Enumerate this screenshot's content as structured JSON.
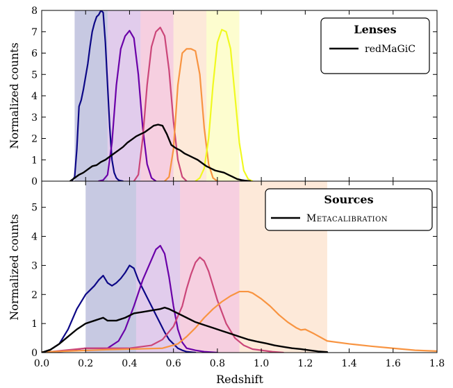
{
  "chart_data": [
    {
      "type": "line",
      "panel": "top",
      "ylabel": "Normalized counts",
      "xlabel": "",
      "xlim": [
        0.0,
        1.8
      ],
      "ylim": [
        0,
        8
      ],
      "yticks": [
        "0",
        "1",
        "2",
        "3",
        "4",
        "5",
        "6",
        "7",
        "8"
      ],
      "grid": false,
      "legend": {
        "placement": "top-right",
        "title": "Lenses",
        "entries": [
          {
            "label": "redMaGiC",
            "color": "#000000"
          }
        ]
      },
      "bins": [
        {
          "range": [
            0.15,
            0.3
          ],
          "color": "#8f94c6"
        },
        {
          "range": [
            0.3,
            0.45
          ],
          "color": "#c39ad9"
        },
        {
          "range": [
            0.45,
            0.6
          ],
          "color": "#ee9fc2"
        },
        {
          "range": [
            0.6,
            0.75
          ],
          "color": "#fcd4b4"
        },
        {
          "range": [
            0.75,
            0.9
          ],
          "color": "#fbfba0"
        }
      ],
      "series": [
        {
          "color": "#0c0786",
          "x": [
            0.13,
            0.14,
            0.15,
            0.16,
            0.17,
            0.18,
            0.19,
            0.2,
            0.21,
            0.22,
            0.23,
            0.24,
            0.25,
            0.26,
            0.27,
            0.28,
            0.29,
            0.3,
            0.31,
            0.32,
            0.33,
            0.34,
            0.35,
            0.36,
            0.37
          ],
          "y": [
            0,
            0.05,
            0.2,
            1.5,
            3.5,
            3.8,
            4.3,
            4.9,
            5.5,
            6.3,
            7.0,
            7.4,
            7.7,
            7.8,
            8.0,
            7.9,
            6.5,
            4.5,
            2.5,
            1.0,
            0.4,
            0.15,
            0.05,
            0.02,
            0
          ]
        },
        {
          "color": "#6a00a8",
          "x": [
            0.26,
            0.28,
            0.3,
            0.32,
            0.34,
            0.36,
            0.38,
            0.4,
            0.42,
            0.44,
            0.46,
            0.48,
            0.5,
            0.52
          ],
          "y": [
            0,
            0.05,
            0.3,
            1.8,
            4.5,
            6.2,
            6.8,
            7.05,
            6.7,
            5.0,
            2.5,
            0.8,
            0.15,
            0
          ]
        },
        {
          "color": "#cb4679",
          "x": [
            0.42,
            0.44,
            0.46,
            0.48,
            0.5,
            0.52,
            0.54,
            0.56,
            0.58,
            0.6,
            0.62,
            0.64,
            0.66
          ],
          "y": [
            0,
            0.3,
            2.0,
            4.5,
            6.3,
            7.0,
            7.2,
            6.8,
            5.2,
            2.8,
            1.0,
            0.2,
            0
          ]
        },
        {
          "color": "#f89441",
          "x": [
            0.56,
            0.58,
            0.6,
            0.62,
            0.64,
            0.66,
            0.68,
            0.7,
            0.72,
            0.74,
            0.76,
            0.78,
            0.8
          ],
          "y": [
            0,
            0.2,
            1.5,
            4.5,
            6.0,
            6.2,
            6.2,
            6.1,
            5.0,
            2.5,
            0.8,
            0.15,
            0
          ]
        },
        {
          "color": "#f0f921",
          "x": [
            0.7,
            0.72,
            0.74,
            0.76,
            0.78,
            0.8,
            0.82,
            0.84,
            0.86,
            0.88,
            0.9,
            0.92,
            0.94,
            0.96
          ],
          "y": [
            0,
            0.15,
            0.6,
            2.0,
            4.5,
            6.5,
            7.1,
            7.0,
            6.2,
            4.0,
            1.8,
            0.5,
            0.1,
            0
          ]
        },
        {
          "color": "#000000",
          "x": [
            0.13,
            0.15,
            0.17,
            0.19,
            0.21,
            0.23,
            0.25,
            0.27,
            0.29,
            0.31,
            0.33,
            0.35,
            0.37,
            0.39,
            0.41,
            0.43,
            0.45,
            0.47,
            0.49,
            0.51,
            0.53,
            0.55,
            0.57,
            0.59,
            0.61,
            0.63,
            0.65,
            0.67,
            0.69,
            0.71,
            0.73,
            0.75,
            0.77,
            0.79,
            0.81,
            0.83,
            0.85,
            0.87,
            0.89,
            0.91,
            0.93,
            0.95
          ],
          "y": [
            0,
            0.15,
            0.3,
            0.4,
            0.55,
            0.7,
            0.75,
            0.9,
            1.0,
            1.15,
            1.3,
            1.45,
            1.6,
            1.8,
            1.95,
            2.1,
            2.2,
            2.3,
            2.45,
            2.6,
            2.65,
            2.6,
            2.2,
            1.7,
            1.55,
            1.45,
            1.3,
            1.2,
            1.1,
            1.0,
            0.85,
            0.7,
            0.6,
            0.5,
            0.45,
            0.4,
            0.3,
            0.2,
            0.1,
            0.05,
            0.02,
            0
          ]
        }
      ]
    },
    {
      "type": "line",
      "panel": "bottom",
      "ylabel": "Normalized counts",
      "xlabel": "Redshift",
      "xlim": [
        0.0,
        1.8
      ],
      "ylim": [
        0,
        5.9
      ],
      "yticks": [
        "0",
        "1",
        "2",
        "3",
        "4",
        "5"
      ],
      "xticks": [
        "0.0",
        "0.2",
        "0.4",
        "0.6",
        "0.8",
        "1.0",
        "1.2",
        "1.4",
        "1.6",
        "1.8"
      ],
      "grid": false,
      "legend": {
        "placement": "top-right",
        "title": "Sources",
        "entries": [
          {
            "label": "Metacalibration",
            "color": "#000000"
          }
        ]
      },
      "bins": [
        {
          "range": [
            0.2,
            0.43
          ],
          "color": "#8f94c6"
        },
        {
          "range": [
            0.43,
            0.63
          ],
          "color": "#c39ad9"
        },
        {
          "range": [
            0.63,
            0.9
          ],
          "color": "#ee9fc2"
        },
        {
          "range": [
            0.9,
            1.3
          ],
          "color": "#fcd4b4"
        }
      ],
      "series": [
        {
          "color": "#0c0786",
          "x": [
            0.0,
            0.04,
            0.08,
            0.12,
            0.16,
            0.2,
            0.24,
            0.26,
            0.28,
            0.3,
            0.32,
            0.34,
            0.36,
            0.38,
            0.4,
            0.42,
            0.44,
            0.46,
            0.48,
            0.5,
            0.52,
            0.54,
            0.56,
            0.58,
            0.6,
            0.62,
            0.64,
            0.66,
            0.7
          ],
          "y": [
            0,
            0.1,
            0.3,
            0.8,
            1.5,
            2.0,
            2.3,
            2.5,
            2.65,
            2.4,
            2.3,
            2.4,
            2.55,
            2.75,
            3.0,
            2.9,
            2.5,
            2.2,
            1.9,
            1.6,
            1.3,
            1.0,
            0.7,
            0.45,
            0.3,
            0.15,
            0.08,
            0.03,
            0
          ]
        },
        {
          "color": "#6a00a8",
          "x": [
            0.0,
            0.1,
            0.2,
            0.3,
            0.35,
            0.38,
            0.42,
            0.46,
            0.5,
            0.52,
            0.54,
            0.56,
            0.58,
            0.6,
            0.62,
            0.64,
            0.66,
            0.7,
            0.74,
            0.8
          ],
          "y": [
            0,
            0.05,
            0.15,
            0.15,
            0.4,
            0.8,
            1.6,
            2.5,
            3.2,
            3.55,
            3.68,
            3.4,
            2.6,
            1.6,
            0.8,
            0.35,
            0.15,
            0.08,
            0.03,
            0
          ]
        },
        {
          "color": "#cb4679",
          "x": [
            0.0,
            0.2,
            0.4,
            0.5,
            0.55,
            0.6,
            0.64,
            0.66,
            0.68,
            0.7,
            0.72,
            0.74,
            0.76,
            0.78,
            0.8,
            0.84,
            0.88,
            0.92,
            0.96,
            1.0,
            1.05,
            1.1
          ],
          "y": [
            0,
            0.15,
            0.15,
            0.25,
            0.45,
            0.9,
            1.6,
            2.2,
            2.7,
            3.1,
            3.28,
            3.15,
            2.8,
            2.3,
            1.8,
            1.0,
            0.5,
            0.25,
            0.12,
            0.08,
            0.03,
            0
          ]
        },
        {
          "color": "#f89441",
          "x": [
            0.0,
            0.3,
            0.55,
            0.62,
            0.66,
            0.7,
            0.74,
            0.78,
            0.82,
            0.86,
            0.9,
            0.94,
            0.96,
            1.0,
            1.04,
            1.08,
            1.12,
            1.16,
            1.18,
            1.2,
            1.24,
            1.3,
            1.4,
            1.5,
            1.6,
            1.7,
            1.8
          ],
          "y": [
            0.02,
            0.1,
            0.15,
            0.3,
            0.55,
            0.85,
            1.2,
            1.5,
            1.75,
            1.95,
            2.1,
            2.1,
            2.05,
            1.85,
            1.6,
            1.3,
            1.05,
            0.85,
            0.78,
            0.8,
            0.65,
            0.4,
            0.3,
            0.22,
            0.15,
            0.08,
            0.05
          ]
        },
        {
          "color": "#000000",
          "x": [
            0.0,
            0.04,
            0.08,
            0.12,
            0.16,
            0.2,
            0.24,
            0.28,
            0.3,
            0.34,
            0.38,
            0.42,
            0.46,
            0.5,
            0.54,
            0.56,
            0.58,
            0.62,
            0.66,
            0.7,
            0.74,
            0.78,
            0.82,
            0.86,
            0.9,
            0.94,
            0.98,
            1.02,
            1.06,
            1.1,
            1.14,
            1.18,
            1.22,
            1.26,
            1.3
          ],
          "y": [
            0,
            0.1,
            0.3,
            0.55,
            0.8,
            1.0,
            1.1,
            1.2,
            1.1,
            1.1,
            1.2,
            1.35,
            1.4,
            1.45,
            1.5,
            1.55,
            1.5,
            1.35,
            1.2,
            1.05,
            0.95,
            0.85,
            0.75,
            0.65,
            0.55,
            0.45,
            0.38,
            0.32,
            0.25,
            0.2,
            0.15,
            0.12,
            0.08,
            0.04,
            0.02
          ]
        }
      ]
    }
  ]
}
